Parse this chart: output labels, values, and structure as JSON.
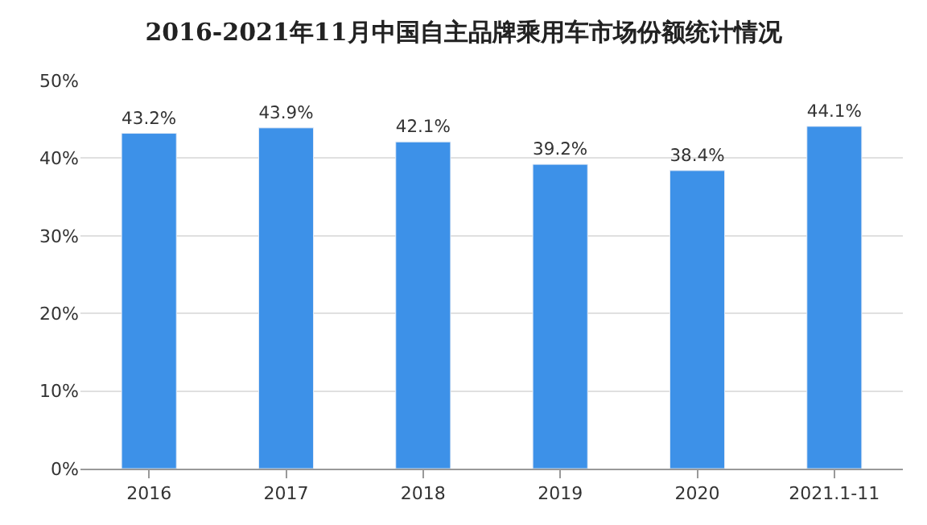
{
  "chart_data": {
    "type": "bar",
    "title": "2016-2021年11月中国自主品牌乘用车市场份额统计情况",
    "categories": [
      "2016",
      "2017",
      "2018",
      "2019",
      "2020",
      "2021.1-11"
    ],
    "values": [
      43.2,
      43.9,
      42.1,
      39.2,
      38.4,
      44.1
    ],
    "value_labels": [
      "43.2%",
      "43.9%",
      "42.1%",
      "39.2%",
      "38.4%",
      "44.1%"
    ],
    "color": "#3d91e8",
    "ylim": [
      0,
      50
    ],
    "yticks": [
      {
        "value": 0,
        "label": "0%"
      },
      {
        "value": 10,
        "label": "10%"
      },
      {
        "value": 20,
        "label": "20%"
      },
      {
        "value": 30,
        "label": "30%"
      },
      {
        "value": 40,
        "label": "40%"
      },
      {
        "value": 50,
        "label": "50%"
      }
    ],
    "grid": "y",
    "legend": false
  }
}
